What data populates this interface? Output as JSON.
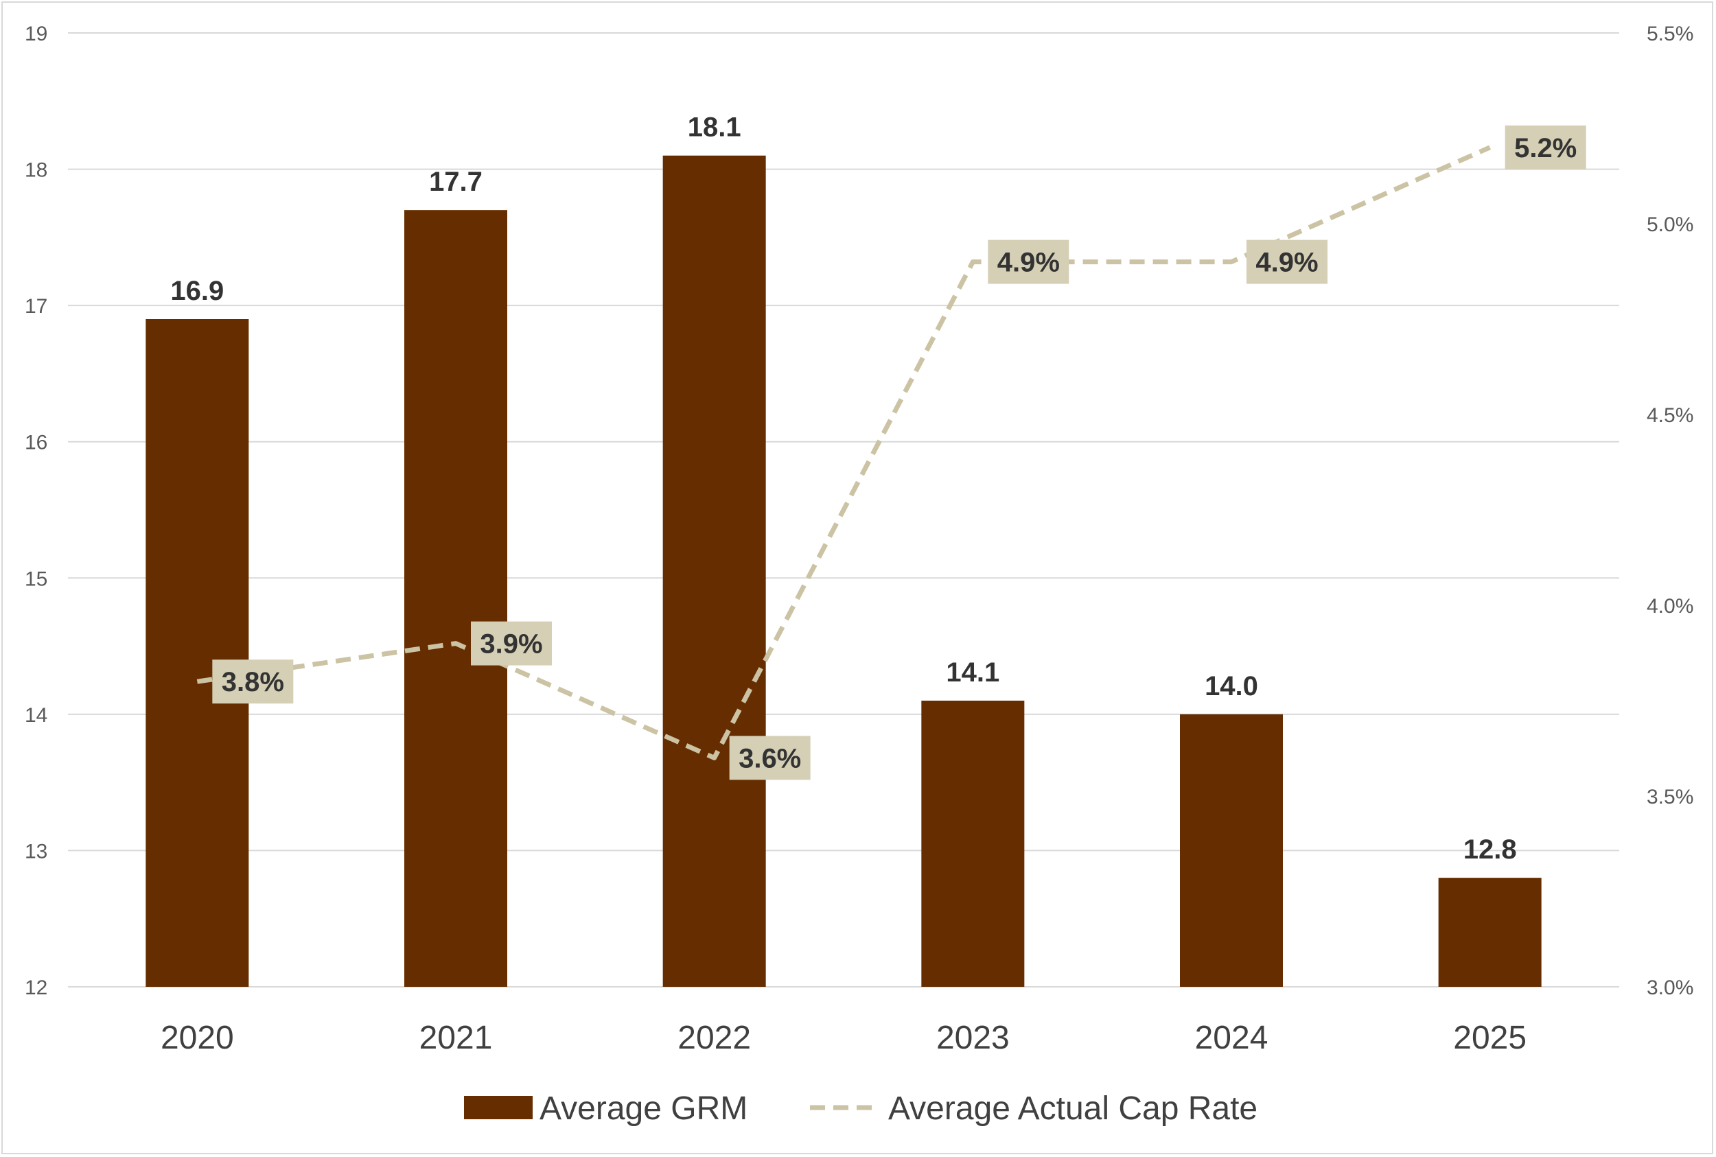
{
  "colors": {
    "bar": "#662e00",
    "line": "#cbc3a3",
    "label_box": "#d5cfb5",
    "grid": "#d9d9d9"
  },
  "chart_data": {
    "type": "bar",
    "categories": [
      "2020",
      "2021",
      "2022",
      "2023",
      "2024",
      "2025"
    ],
    "series": [
      {
        "name": "Average GRM",
        "type": "bar",
        "axis": "left",
        "values": [
          16.9,
          17.7,
          18.1,
          14.1,
          14.0,
          12.8
        ],
        "labels": [
          "16.9",
          "17.7",
          "18.1",
          "14.1",
          "14.0",
          "12.8"
        ]
      },
      {
        "name": "Average Actual Cap Rate",
        "type": "line",
        "style": "dashed",
        "axis": "right",
        "values": [
          3.8,
          3.9,
          3.6,
          4.9,
          4.9,
          5.2
        ],
        "labels": [
          "3.8%",
          "3.9%",
          "3.6%",
          "4.9%",
          "4.9%",
          "5.2%"
        ]
      }
    ],
    "left_axis": {
      "range": [
        12,
        19
      ],
      "ticks": [
        "12",
        "13",
        "14",
        "15",
        "16",
        "17",
        "18",
        "19"
      ]
    },
    "right_axis": {
      "range": [
        3.0,
        5.5
      ],
      "ticks": [
        "3.0%",
        "3.5%",
        "4.0%",
        "4.5%",
        "5.0%",
        "5.5%"
      ]
    },
    "grid": true,
    "legend": "bottom",
    "title": "",
    "xlabel": "",
    "ylabel": ""
  }
}
